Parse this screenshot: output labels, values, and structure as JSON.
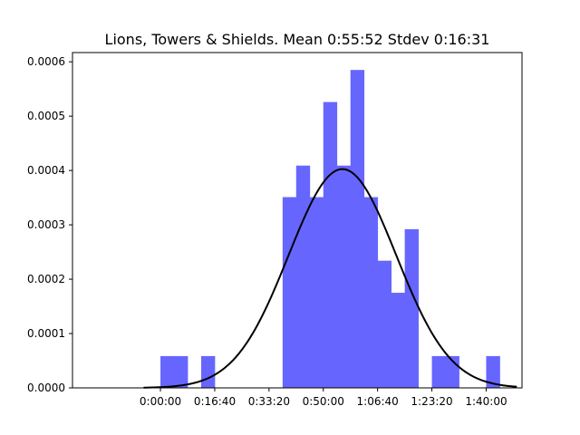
{
  "chart_data": {
    "type": "bar",
    "title": "Lions, Towers & Shields. Mean 0:55:52 Stdev 0:16:31",
    "xlabel": "",
    "ylabel": "",
    "xlim": [
      -1620,
      6660
    ],
    "ylim": [
      0,
      0.000617
    ],
    "grid": false,
    "legend": "none",
    "bar_color": "#6666ff",
    "curve_color": "#000000",
    "x_ticks": [
      {
        "value": 0,
        "label": "0:00:00"
      },
      {
        "value": 1000,
        "label": "0:16:40"
      },
      {
        "value": 2000,
        "label": "0:33:20"
      },
      {
        "value": 3000,
        "label": "0:50:00"
      },
      {
        "value": 4000,
        "label": "1:06:40"
      },
      {
        "value": 5000,
        "label": "1:23:20"
      },
      {
        "value": 6000,
        "label": "1:40:00"
      }
    ],
    "y_ticks": [
      {
        "value": 0,
        "label": "0.0000"
      },
      {
        "value": 0.0001,
        "label": "0.0001"
      },
      {
        "value": 0.0002,
        "label": "0.0002"
      },
      {
        "value": 0.0003,
        "label": "0.0003"
      },
      {
        "value": 0.0004,
        "label": "0.0004"
      },
      {
        "value": 0.0005,
        "label": "0.0005"
      },
      {
        "value": 0.0006,
        "label": "0.0006"
      }
    ],
    "histogram": {
      "bins": [
        {
          "start": 0,
          "end": 250,
          "density": 5.85e-05
        },
        {
          "start": 250,
          "end": 500,
          "density": 5.85e-05
        },
        {
          "start": 750,
          "end": 1000,
          "density": 5.85e-05
        },
        {
          "start": 2250,
          "end": 2500,
          "density": 0.000351
        },
        {
          "start": 2500,
          "end": 2750,
          "density": 0.000409
        },
        {
          "start": 2750,
          "end": 3000,
          "density": 0.000351
        },
        {
          "start": 3000,
          "end": 3250,
          "density": 0.000526
        },
        {
          "start": 3250,
          "end": 3500,
          "density": 0.000409
        },
        {
          "start": 3500,
          "end": 3750,
          "density": 0.000585
        },
        {
          "start": 3750,
          "end": 4000,
          "density": 0.000351
        },
        {
          "start": 4000,
          "end": 4250,
          "density": 0.000234
        },
        {
          "start": 4250,
          "end": 4500,
          "density": 0.000175
        },
        {
          "start": 4500,
          "end": 4750,
          "density": 0.000292
        },
        {
          "start": 5000,
          "end": 5250,
          "density": 5.85e-05
        },
        {
          "start": 5250,
          "end": 5500,
          "density": 5.85e-05
        },
        {
          "start": 6000,
          "end": 6250,
          "density": 5.85e-05
        }
      ]
    },
    "normal_curve": {
      "mean": 3352,
      "stdev": 991,
      "x_range": [
        -300,
        6550
      ]
    }
  }
}
